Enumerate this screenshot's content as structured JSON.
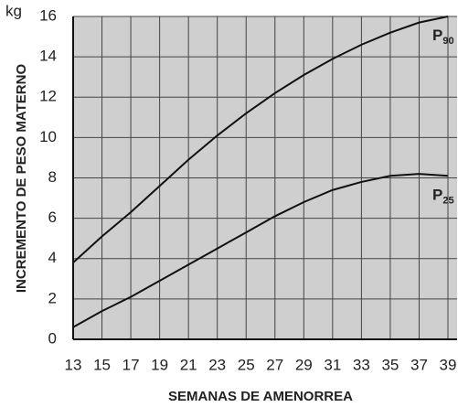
{
  "chart_data": {
    "type": "line",
    "y_unit": "kg",
    "xlabel": "SEMANAS DE AMENORREA",
    "ylabel": "INCREMENTO DE PESO MATERNO",
    "x": [
      13,
      15,
      17,
      19,
      21,
      23,
      25,
      27,
      29,
      31,
      33,
      35,
      37,
      39
    ],
    "series": [
      {
        "name": "P90",
        "name_main": "P",
        "name_sub": "90",
        "color": "#111111",
        "values": [
          3.8,
          5.1,
          6.3,
          7.6,
          8.9,
          10.1,
          11.2,
          12.2,
          13.1,
          13.9,
          14.6,
          15.2,
          15.7,
          16.0
        ]
      },
      {
        "name": "P25",
        "name_main": "P",
        "name_sub": "25",
        "color": "#111111",
        "values": [
          0.6,
          1.4,
          2.1,
          2.9,
          3.7,
          4.5,
          5.3,
          6.1,
          6.8,
          7.4,
          7.8,
          8.1,
          8.2,
          8.1
        ]
      }
    ],
    "xlim": [
      13,
      39
    ],
    "xticks": [
      13,
      15,
      17,
      19,
      21,
      23,
      25,
      27,
      29,
      31,
      33,
      35,
      37,
      39
    ],
    "ylim": [
      0,
      16
    ],
    "yticks": [
      0,
      2,
      4,
      6,
      8,
      10,
      12,
      14,
      16
    ],
    "grid": true
  }
}
